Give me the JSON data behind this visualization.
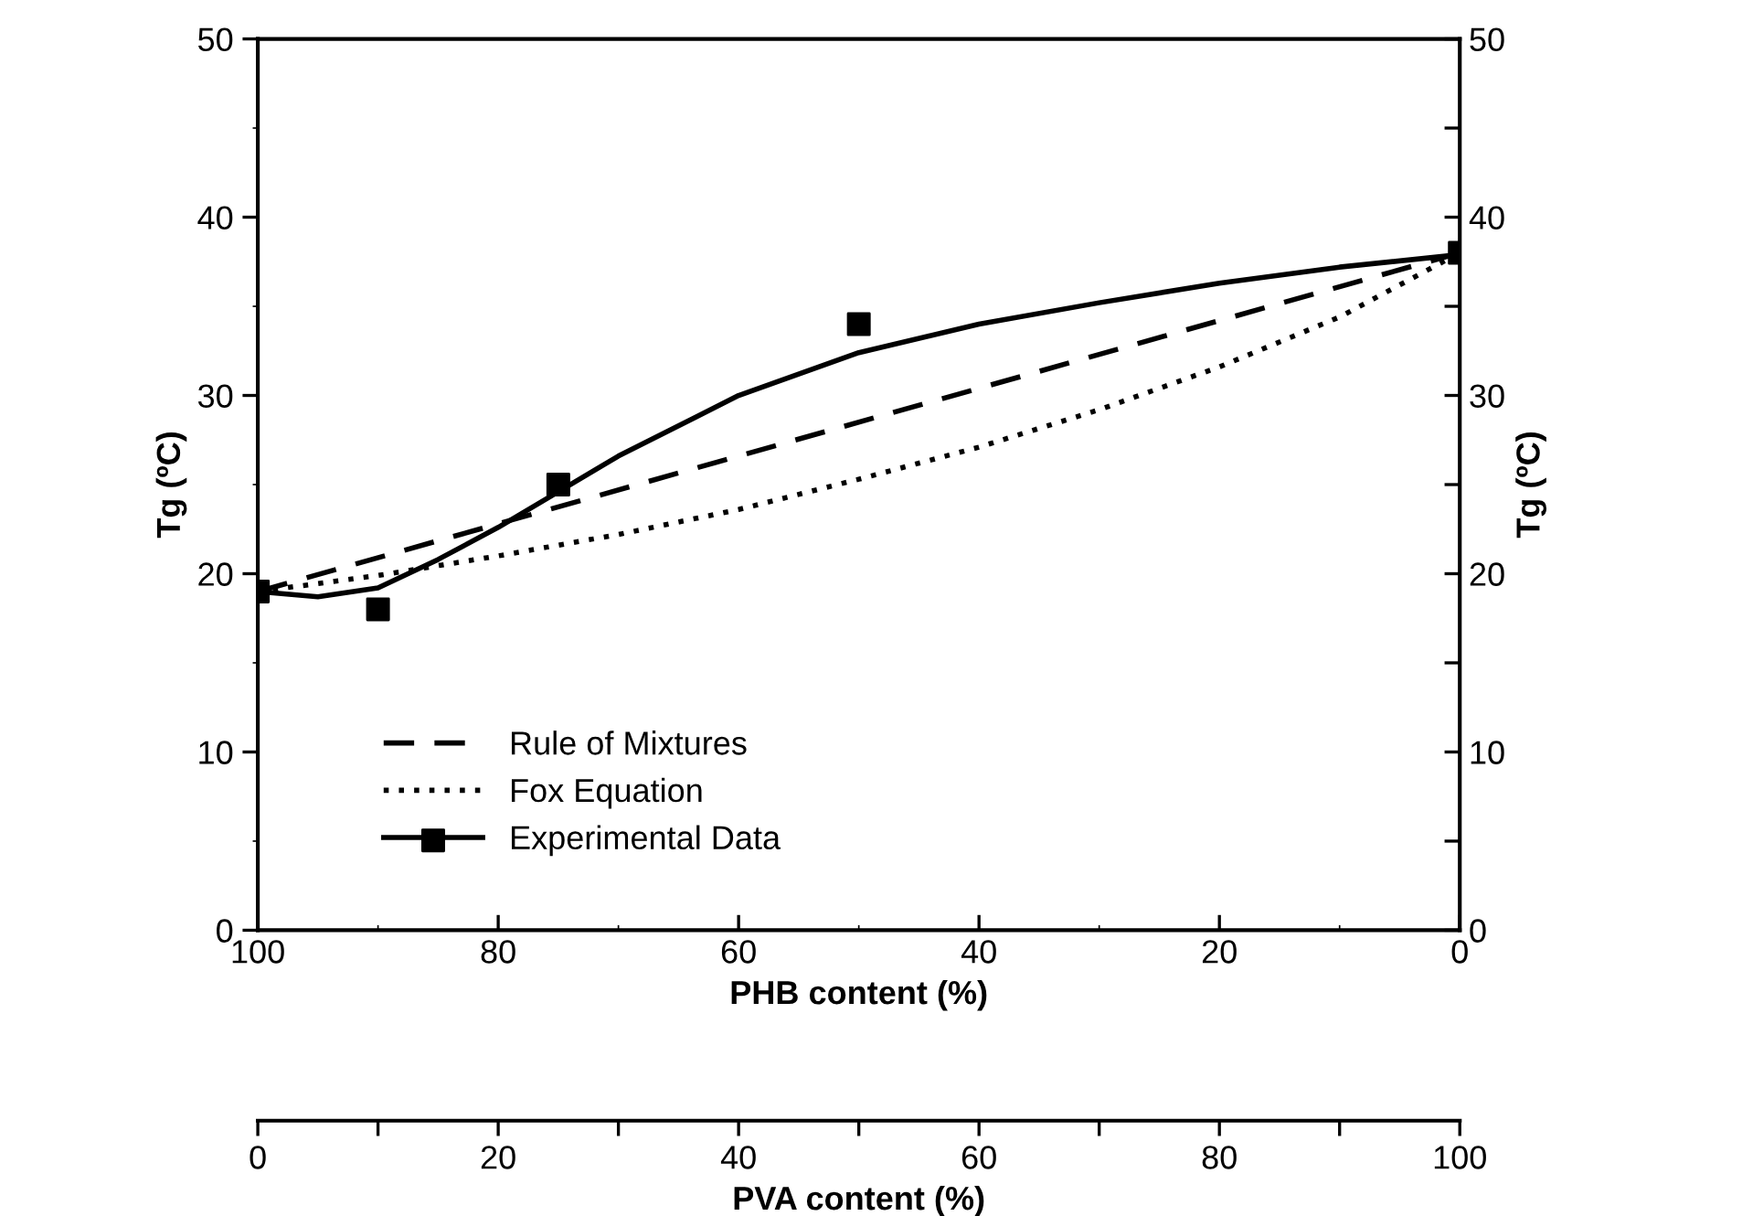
{
  "chart_data": {
    "type": "line",
    "xlabel": "PHB content (%)",
    "ylabel": "Tg (ºC)",
    "y2label": "Tg (ºC)",
    "x2label": "PVA content (%)",
    "xlim": [
      100,
      0
    ],
    "xticks": [
      100,
      80,
      60,
      40,
      20,
      0
    ],
    "ylim": [
      0,
      50
    ],
    "yticks": [
      0,
      10,
      20,
      30,
      40,
      50
    ],
    "y2lim": [
      0,
      50
    ],
    "y2ticks": [
      0,
      10,
      20,
      30,
      40,
      50
    ],
    "x2lim": [
      0,
      100
    ],
    "x2ticks": [
      0,
      20,
      40,
      60,
      80,
      100
    ],
    "grid": false,
    "legend": "bottom left",
    "series": [
      {
        "name": "Rule of Mixtures",
        "color": "#000000",
        "line_style": "dashed",
        "marker": "none",
        "x": [
          100,
          0
        ],
        "values": [
          19,
          38
        ]
      },
      {
        "name": "Fox Equation",
        "color": "#000000",
        "line_style": "dotted",
        "marker": "none",
        "x": [
          100,
          90,
          80,
          70,
          60,
          50,
          40,
          30,
          20,
          10,
          0
        ],
        "values": [
          19,
          19.9,
          21,
          22.2,
          23.6,
          25.3,
          27.1,
          29.2,
          31.6,
          34.4,
          38
        ]
      },
      {
        "name": "Experimental Data",
        "type": "scatter",
        "color": "#000000",
        "marker": "square",
        "x": [
          100,
          90,
          75,
          50,
          0
        ],
        "values": [
          19,
          18,
          25,
          34,
          38
        ]
      },
      {
        "color": "#000000",
        "line_style": "solid",
        "marker": "none",
        "x": [
          100,
          95,
          90,
          85,
          80,
          75,
          70,
          60,
          50,
          40,
          30,
          20,
          10,
          0
        ],
        "values": [
          19,
          18.7,
          19.2,
          20.8,
          22.6,
          24.6,
          26.6,
          30,
          32.4,
          34,
          35.2,
          36.3,
          37.2,
          37.9
        ]
      }
    ]
  }
}
